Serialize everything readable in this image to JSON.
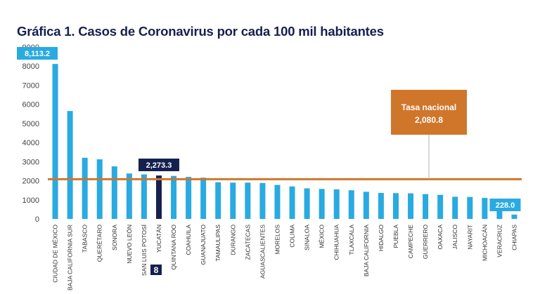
{
  "chart_data": {
    "type": "bar",
    "title": "Gráfica 1. Casos de Coronavirus por cada 100 mil habitantes",
    "xlabel": "",
    "ylabel": "",
    "ylim": [
      0,
      9000
    ],
    "yticks": [
      "0",
      "1000",
      "2000",
      "3000",
      "4000",
      "5000",
      "6000",
      "7000",
      "8000",
      "9000"
    ],
    "grid": false,
    "categories": [
      "CIUDAD DE MÉXICO",
      "BAJA CALIFORNIA SUR",
      "TABASCO",
      "QUERÉTARO",
      "SONORA",
      "NUEVO LEÓN",
      "SAN LUIS POTOSÍ",
      "YUCATÁN",
      "QUINTANA ROO",
      "COAHUILA",
      "GUANAJUATO",
      "TAMAULIPAS",
      "DURANGO",
      "ZACATECAS",
      "AGUASCALIENTES",
      "MORELOS",
      "COLIMA",
      "SINALOA",
      "MÉXICO",
      "CHIHUAHUA",
      "TLAXCALA",
      "BAJA CALIFORNIA",
      "HIDALGO",
      "PUEBLA",
      "CAMPECHE",
      "GUERRERO",
      "OAXACA",
      "JALISCO",
      "NAYARIT",
      "MICHOACÁN",
      "VERACRUZ",
      "CHIAPAS"
    ],
    "values": [
      8113.2,
      5650,
      3200,
      3120,
      2750,
      2380,
      2330,
      2273.3,
      2250,
      2200,
      2160,
      1920,
      1900,
      1900,
      1880,
      1780,
      1700,
      1600,
      1570,
      1550,
      1500,
      1420,
      1360,
      1350,
      1340,
      1300,
      1260,
      1160,
      1150,
      1100,
      680,
      228.0
    ],
    "bar_color": "#29aae1",
    "highlight_index": 7,
    "highlight_color": "#15204f",
    "reference_line": {
      "value": 2080.8,
      "label": "Tasa nacional",
      "value_label": "2,080.8",
      "color": "#d0762a"
    },
    "annotations": [
      {
        "text": "8,113.2",
        "bar_index": 0
      },
      {
        "text": "2,273.3",
        "bar_index": 7
      },
      {
        "text": "228.0",
        "bar_index": 31
      },
      {
        "text": "8",
        "bar_index": 7
      }
    ]
  }
}
